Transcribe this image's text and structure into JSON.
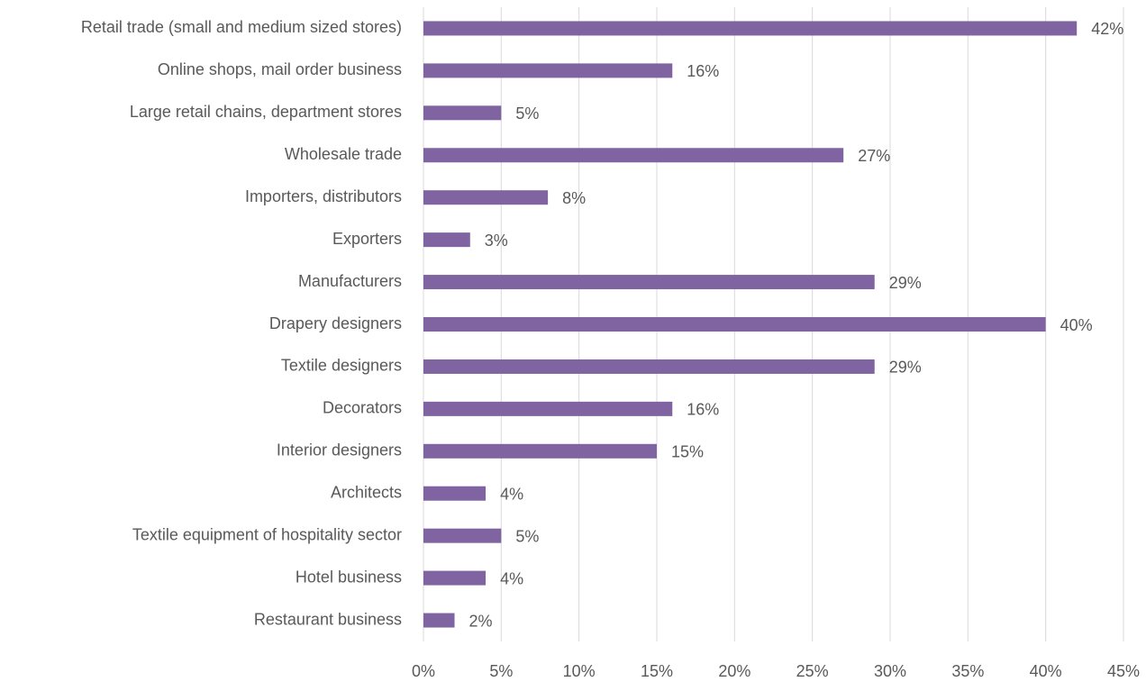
{
  "chart_data": {
    "type": "bar",
    "orientation": "horizontal",
    "categories": [
      "Retail trade (small and medium sized stores)",
      "Online shops, mail order business",
      "Large retail chains, department stores",
      "Wholesale trade",
      "Importers, distributors",
      "Exporters",
      "Manufacturers",
      "Drapery designers",
      "Textile designers",
      "Decorators",
      "Interior designers",
      "Architects",
      "Textile equipment of hospitality sector",
      "Hotel business",
      "Restaurant business"
    ],
    "values": [
      42,
      16,
      5,
      27,
      8,
      3,
      29,
      40,
      29,
      16,
      15,
      4,
      5,
      4,
      2
    ],
    "value_labels": [
      "42%",
      "16%",
      "5%",
      "27%",
      "8%",
      "3%",
      "29%",
      "40%",
      "29%",
      "16%",
      "15%",
      "4%",
      "5%",
      "4%",
      "2%"
    ],
    "color": "#8064a2",
    "xlim": [
      0,
      45
    ],
    "xticks": [
      {
        "value": 0,
        "label": "0%"
      },
      {
        "value": 5,
        "label": "5%"
      },
      {
        "value": 10,
        "label": "10%"
      },
      {
        "value": 15,
        "label": "15%"
      },
      {
        "value": 20,
        "label": "20%"
      },
      {
        "value": 25,
        "label": "25%"
      },
      {
        "value": 30,
        "label": "30%"
      },
      {
        "value": 35,
        "label": "35%"
      },
      {
        "value": 40,
        "label": "40%"
      },
      {
        "value": 45,
        "label": "45%"
      }
    ],
    "grid": true
  }
}
